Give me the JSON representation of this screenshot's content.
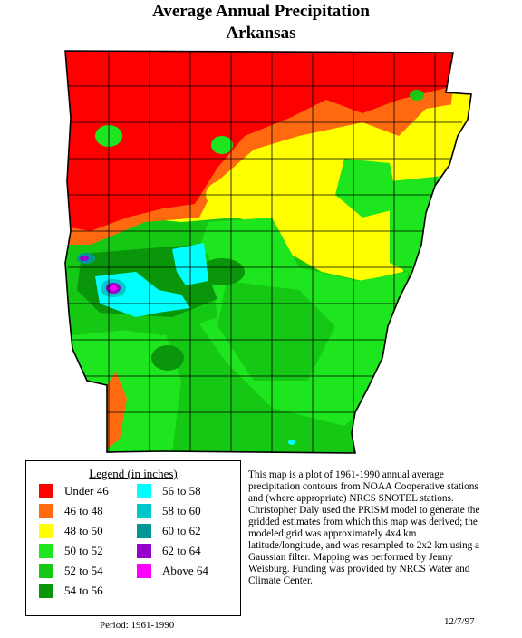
{
  "title_line1": "Average Annual Precipitation",
  "title_line2": "Arkansas",
  "legend": {
    "title": "Legend (in inches)",
    "items": [
      {
        "label": "Under 46",
        "color": "#ff0000"
      },
      {
        "label": "46 to 48",
        "color": "#ff6a10"
      },
      {
        "label": "48 to 50",
        "color": "#ffff00"
      },
      {
        "label": "50 to 52",
        "color": "#1ee61e"
      },
      {
        "label": "52 to 54",
        "color": "#14c814"
      },
      {
        "label": "54 to 56",
        "color": "#0a960a"
      },
      {
        "label": "56 to 58",
        "color": "#00ffff"
      },
      {
        "label": "58 to 60",
        "color": "#00c8c8"
      },
      {
        "label": "60 to 62",
        "color": "#009696"
      },
      {
        "label": "62 to 64",
        "color": "#9600c8"
      },
      {
        "label": "Above 64",
        "color": "#ff00ff"
      }
    ]
  },
  "description": "This map is a plot of 1961-1990 annual average precipitation contours from NOAA Cooperative stations and (where appropriate) NRCS SNOTEL stations. Christopher Daly used the PRISM model to generate the gridded estimates from which this map was derived; the modeled grid was approximately 4x4 km latitude/longitude, and was resampled to 2x2 km using a Gaussian filter. Mapping was performed by Jenny Weisburg. Funding was provided by NRCS Water and Climate Center.",
  "period": "Period: 1961-1990",
  "date": "12/7/97"
}
